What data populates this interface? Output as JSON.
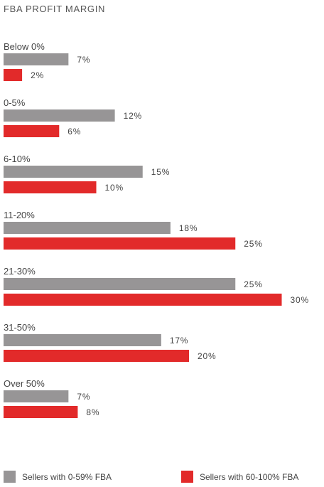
{
  "chart_data": {
    "type": "bar",
    "orientation": "horizontal",
    "title": "FBA PROFIT MARGIN",
    "categories": [
      "Below 0%",
      "0-5%",
      "6-10%",
      "11-20%",
      "21-30%",
      "31-50%",
      "Over 50%"
    ],
    "series": [
      {
        "name": "Sellers with 0-59% FBA",
        "color": "#979596",
        "values": [
          7,
          12,
          15,
          18,
          25,
          17,
          7
        ]
      },
      {
        "name": "Sellers with 60-100% FBA",
        "color": "#e22a2a",
        "values": [
          2,
          6,
          10,
          25,
          30,
          20,
          8
        ]
      }
    ],
    "value_suffix": "%",
    "legend_position": "bottom"
  }
}
